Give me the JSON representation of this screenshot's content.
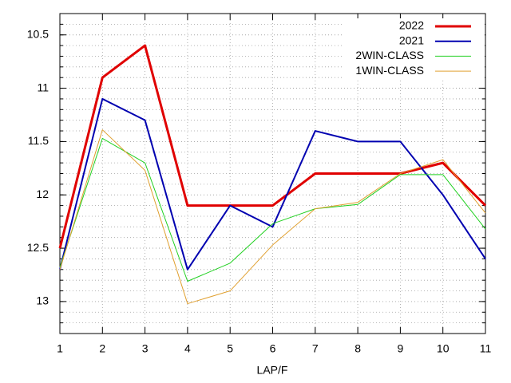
{
  "chart_data": {
    "type": "line",
    "xlabel": "LAP/F",
    "x": [
      1,
      2,
      3,
      4,
      5,
      6,
      7,
      8,
      9,
      10,
      11
    ],
    "xlim": [
      1,
      11
    ],
    "xticks": [
      1,
      2,
      3,
      4,
      5,
      6,
      7,
      8,
      9,
      10,
      11
    ],
    "ylim": [
      13.3,
      10.3
    ],
    "y_reversed": true,
    "yticks": [
      10.5,
      11,
      11.5,
      12,
      12.5,
      13
    ],
    "yminor": 5,
    "grid": true,
    "legend": "top-right",
    "series": [
      {
        "name": "2022",
        "color": "#e00000",
        "line_width": 3,
        "values": [
          12.5,
          10.9,
          10.6,
          12.1,
          12.1,
          12.1,
          11.8,
          11.8,
          11.8,
          11.7,
          12.1
        ]
      },
      {
        "name": "2021",
        "color": "#0000b0",
        "line_width": 2,
        "values": [
          12.7,
          11.1,
          11.3,
          12.7,
          12.1,
          12.3,
          11.4,
          11.5,
          11.5,
          12.0,
          12.6
        ]
      },
      {
        "name": "2WIN-CLASS",
        "color": "#20d020",
        "line_width": 1,
        "values": [
          12.68,
          11.47,
          11.7,
          12.81,
          12.64,
          12.27,
          12.13,
          12.09,
          11.81,
          11.81,
          12.32
        ]
      },
      {
        "name": "1WIN-CLASS",
        "color": "#e0a030",
        "line_width": 1,
        "values": [
          12.7,
          11.39,
          11.77,
          13.02,
          12.9,
          12.47,
          12.13,
          12.07,
          11.8,
          11.67,
          12.17
        ]
      }
    ]
  }
}
